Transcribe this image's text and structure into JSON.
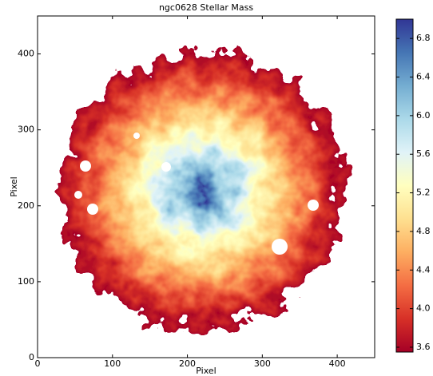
{
  "chart_data": {
    "type": "image",
    "title": "ngc0628 Stellar Mass",
    "x_label": "Pixel",
    "y_label": "Pixel",
    "xlim": [
      0,
      450
    ],
    "ylim": [
      0,
      450
    ],
    "xticks": [
      0,
      100,
      200,
      300,
      400
    ],
    "yticks": [
      0,
      100,
      200,
      300,
      400
    ],
    "clim": [
      3.55,
      7.0
    ],
    "cticks": [
      3.6,
      {
        "value": 4,
        "label": "4.0"
      },
      4.4,
      4.8,
      5.2,
      5.6,
      {
        "value": 6,
        "label": "6.0"
      },
      6.4,
      6.8
    ],
    "colormap": [
      "#a50026",
      "#d73027",
      "#f46d43",
      "#fdae61",
      "#fee090",
      "#ffffbf",
      "#e0f3f8",
      "#abd9e9",
      "#74add1",
      "#4575b4",
      "#313695"
    ]
  }
}
